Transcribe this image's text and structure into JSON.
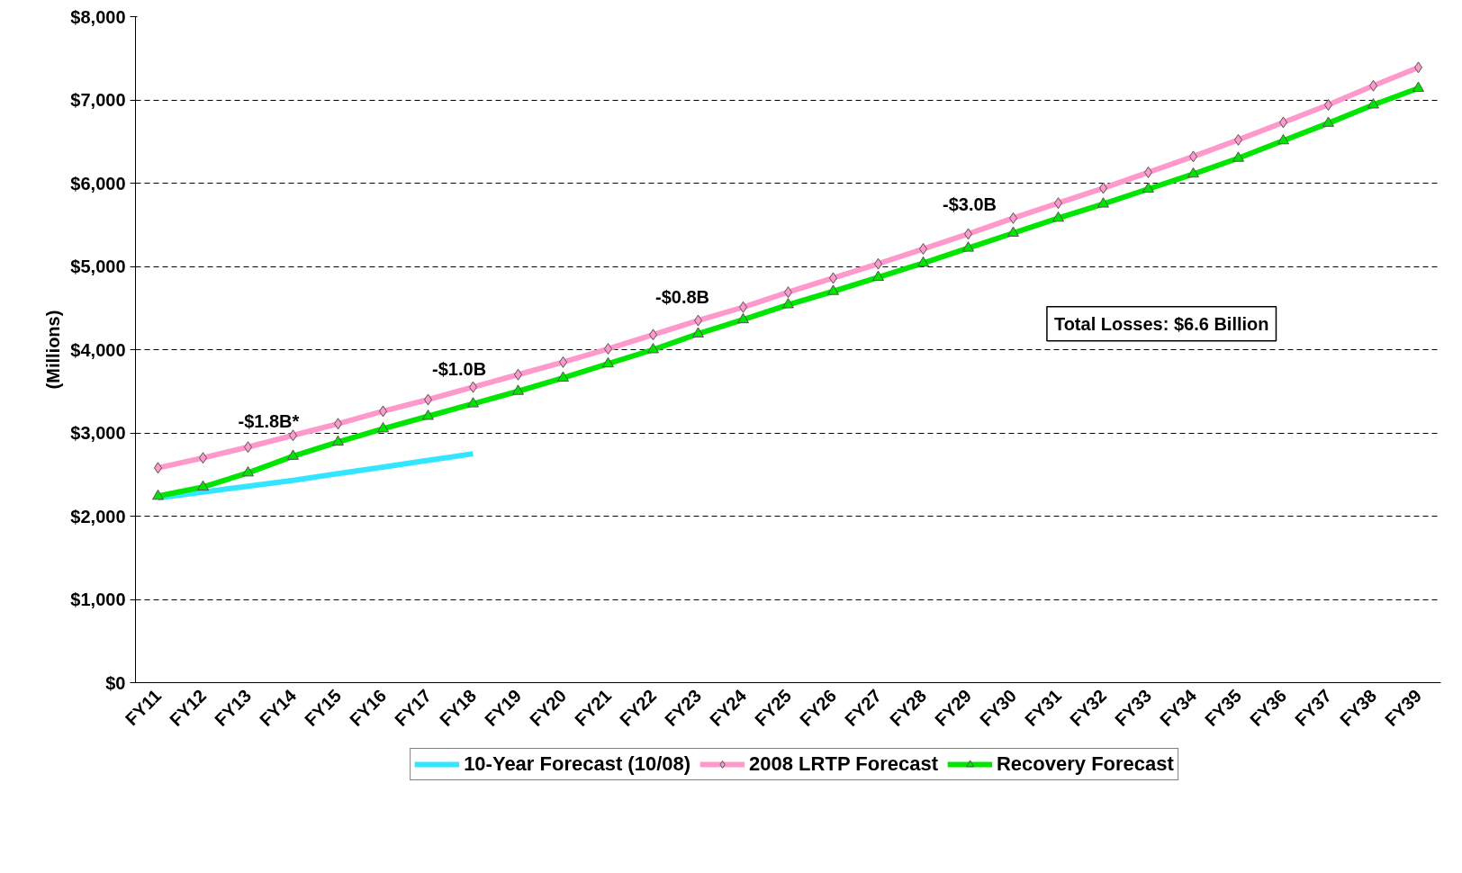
{
  "chart_data": {
    "type": "line",
    "ylabel": "(Millions)",
    "categories": [
      "FY11",
      "FY12",
      "FY13",
      "FY14",
      "FY15",
      "FY16",
      "FY17",
      "FY18",
      "FY19",
      "FY20",
      "FY21",
      "FY22",
      "FY23",
      "FY24",
      "FY25",
      "FY26",
      "FY27",
      "FY28",
      "FY29",
      "FY30",
      "FY31",
      "FY32",
      "FY33",
      "FY34",
      "FY35",
      "FY36",
      "FY37",
      "FY38",
      "FY39"
    ],
    "series": [
      {
        "name": "10-Year Forecast (10/08)",
        "color": "#33e6ff",
        "marker": "none",
        "values": [
          2220,
          2290,
          2360,
          2430,
          2510,
          2590,
          2670,
          2750,
          null,
          null,
          null,
          null,
          null,
          null,
          null,
          null,
          null,
          null,
          null,
          null,
          null,
          null,
          null,
          null,
          null,
          null,
          null,
          null,
          null
        ]
      },
      {
        "name": "2008 LRTP Forecast",
        "color": "#ff99cc",
        "marker": "diamond",
        "values": [
          2580,
          2700,
          2830,
          2970,
          3110,
          3260,
          3400,
          3550,
          3700,
          3850,
          4010,
          4180,
          4350,
          4510,
          4690,
          4860,
          5030,
          5210,
          5390,
          5580,
          5760,
          5940,
          6130,
          6320,
          6520,
          6730,
          6940,
          7170,
          7390
        ]
      },
      {
        "name": "Recovery Forecast",
        "color": "#00e600",
        "marker": "triangle",
        "values": [
          2240,
          2350,
          2520,
          2720,
          2890,
          3050,
          3200,
          3350,
          3500,
          3660,
          3830,
          4000,
          4190,
          4360,
          4540,
          4700,
          4870,
          5040,
          5220,
          5400,
          5580,
          5750,
          5930,
          6110,
          6300,
          6510,
          6720,
          6940,
          7140
        ]
      }
    ],
    "ylim": [
      0,
      8000
    ],
    "yticks": [
      {
        "value": 0,
        "label": "$0"
      },
      {
        "value": 1000,
        "label": "$1,000"
      },
      {
        "value": 2000,
        "label": "$2,000"
      },
      {
        "value": 3000,
        "label": "$3,000"
      },
      {
        "value": 4000,
        "label": "$4,000"
      },
      {
        "value": 5000,
        "label": "$5,000"
      },
      {
        "value": 6000,
        "label": "$6,000"
      },
      {
        "value": 7000,
        "label": "$7,000"
      },
      {
        "value": 8000,
        "label": "$8,000"
      }
    ],
    "grid": "y",
    "legend": "bottom",
    "line_style": "solid",
    "annotations": [
      "-$1.8B*",
      "-$1.0B",
      "-$0.8B",
      "-$3.0B",
      "Total Losses: $6.6 Billion"
    ]
  }
}
